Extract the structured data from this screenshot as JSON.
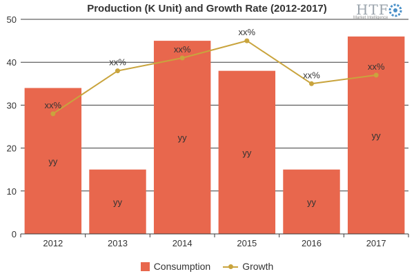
{
  "chart_data": {
    "type": "bar",
    "title": "Production (K Unit) and Growth Rate (2012-2017)",
    "categories": [
      "2012",
      "2013",
      "2014",
      "2015",
      "2016",
      "2017"
    ],
    "ylim": [
      0,
      50
    ],
    "yticks": [
      0,
      10,
      20,
      30,
      40,
      50
    ],
    "grid": true,
    "legend_position": "bottom",
    "series": [
      {
        "name": "Consumption",
        "type": "bar",
        "color": "#e8674d",
        "values": [
          34,
          15,
          45,
          38,
          15,
          46
        ],
        "data_labels": [
          "yy",
          "yy",
          "yy",
          "yy",
          "yy",
          "yy"
        ]
      },
      {
        "name": "Growth",
        "type": "line",
        "color": "#c9a43d",
        "values": [
          28,
          38,
          41,
          45,
          35,
          37
        ],
        "data_labels": [
          "xx%",
          "xx%",
          "xx%",
          "xx%",
          "xx%",
          "xx%"
        ]
      }
    ]
  },
  "logo": {
    "text": "HTF",
    "subtext": "Market Intelligence",
    "icon": "gear-icon"
  }
}
